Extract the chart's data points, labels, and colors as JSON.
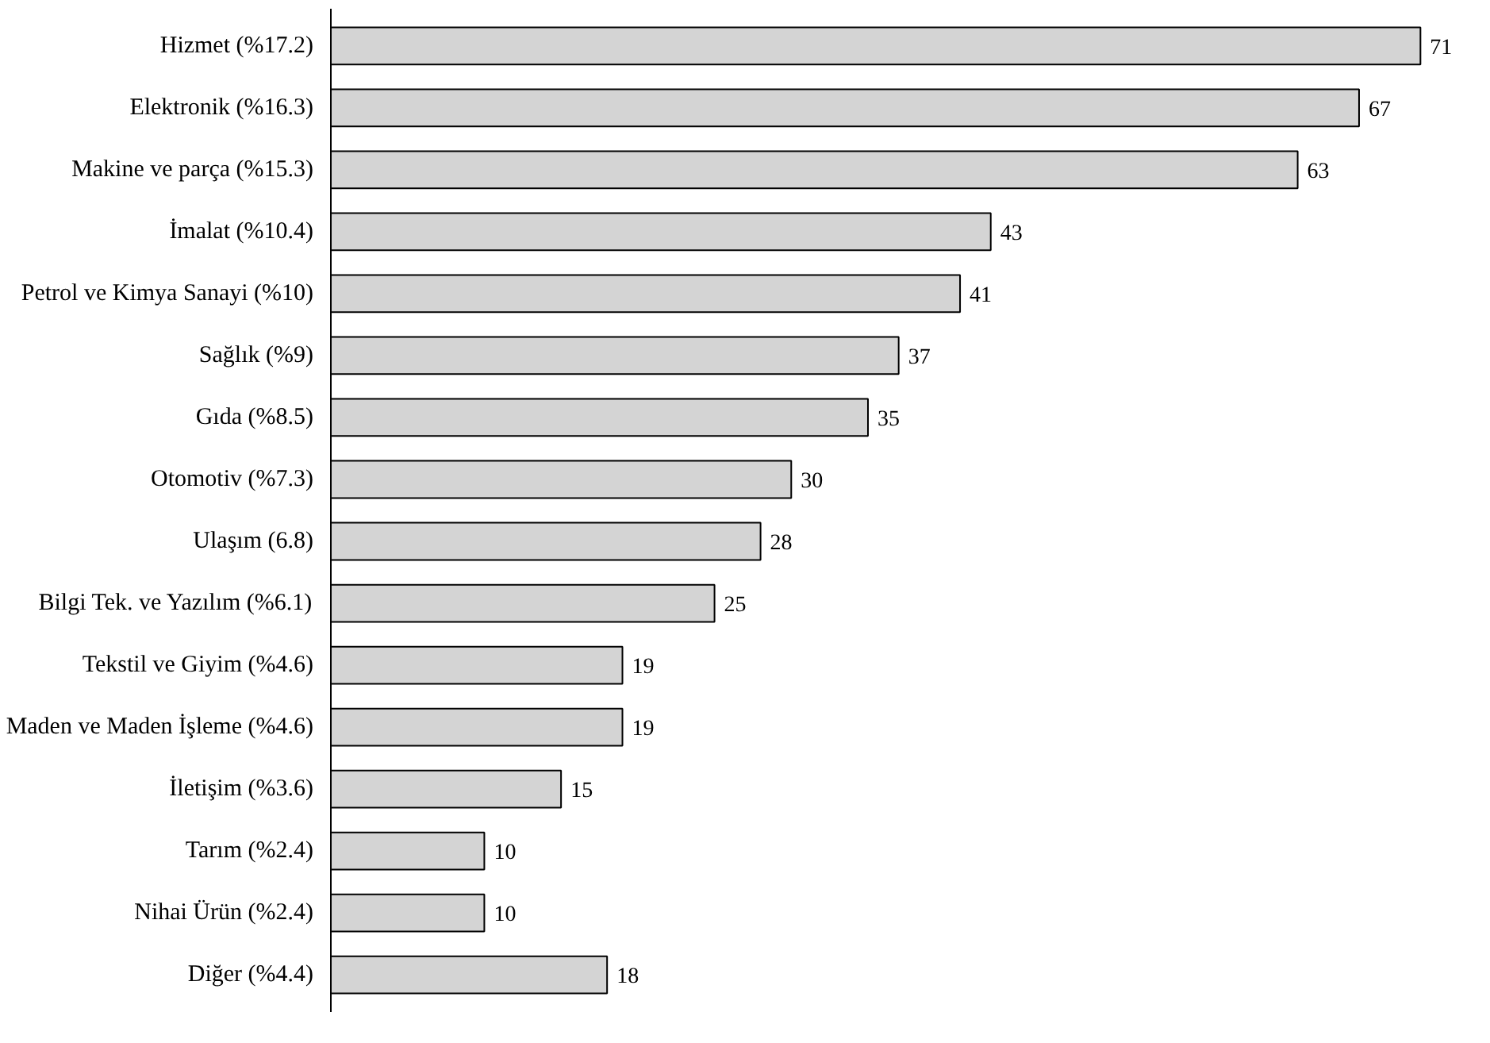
{
  "chart_data": {
    "type": "bar",
    "orientation": "horizontal",
    "data_labels": true,
    "color": "#d4d4d4",
    "categories": [
      "Hizmet (%17.2)",
      "Elektronik (%16.3)",
      "Makine ve parça (%15.3)",
      "İmalat (%10.4)",
      "Petrol ve Kimya Sanayi (%10)",
      "Sağlık (%9)",
      "Gıda (%8.5)",
      "Otomotiv (%7.3)",
      "Ulaşım (6.8)",
      "Bilgi Tek. ve Yazılım (%6.1)",
      "Tekstil ve Giyim (%4.6)",
      "Maden ve Maden İşleme (%4.6)",
      "İletişim (%3.6)",
      "Tarım (%2.4)",
      "Nihai Ürün (%2.4)",
      "Diğer (%4.4)"
    ],
    "values": [
      71,
      67,
      63,
      43,
      41,
      37,
      35,
      30,
      28,
      25,
      19,
      19,
      15,
      10,
      10,
      18
    ]
  }
}
